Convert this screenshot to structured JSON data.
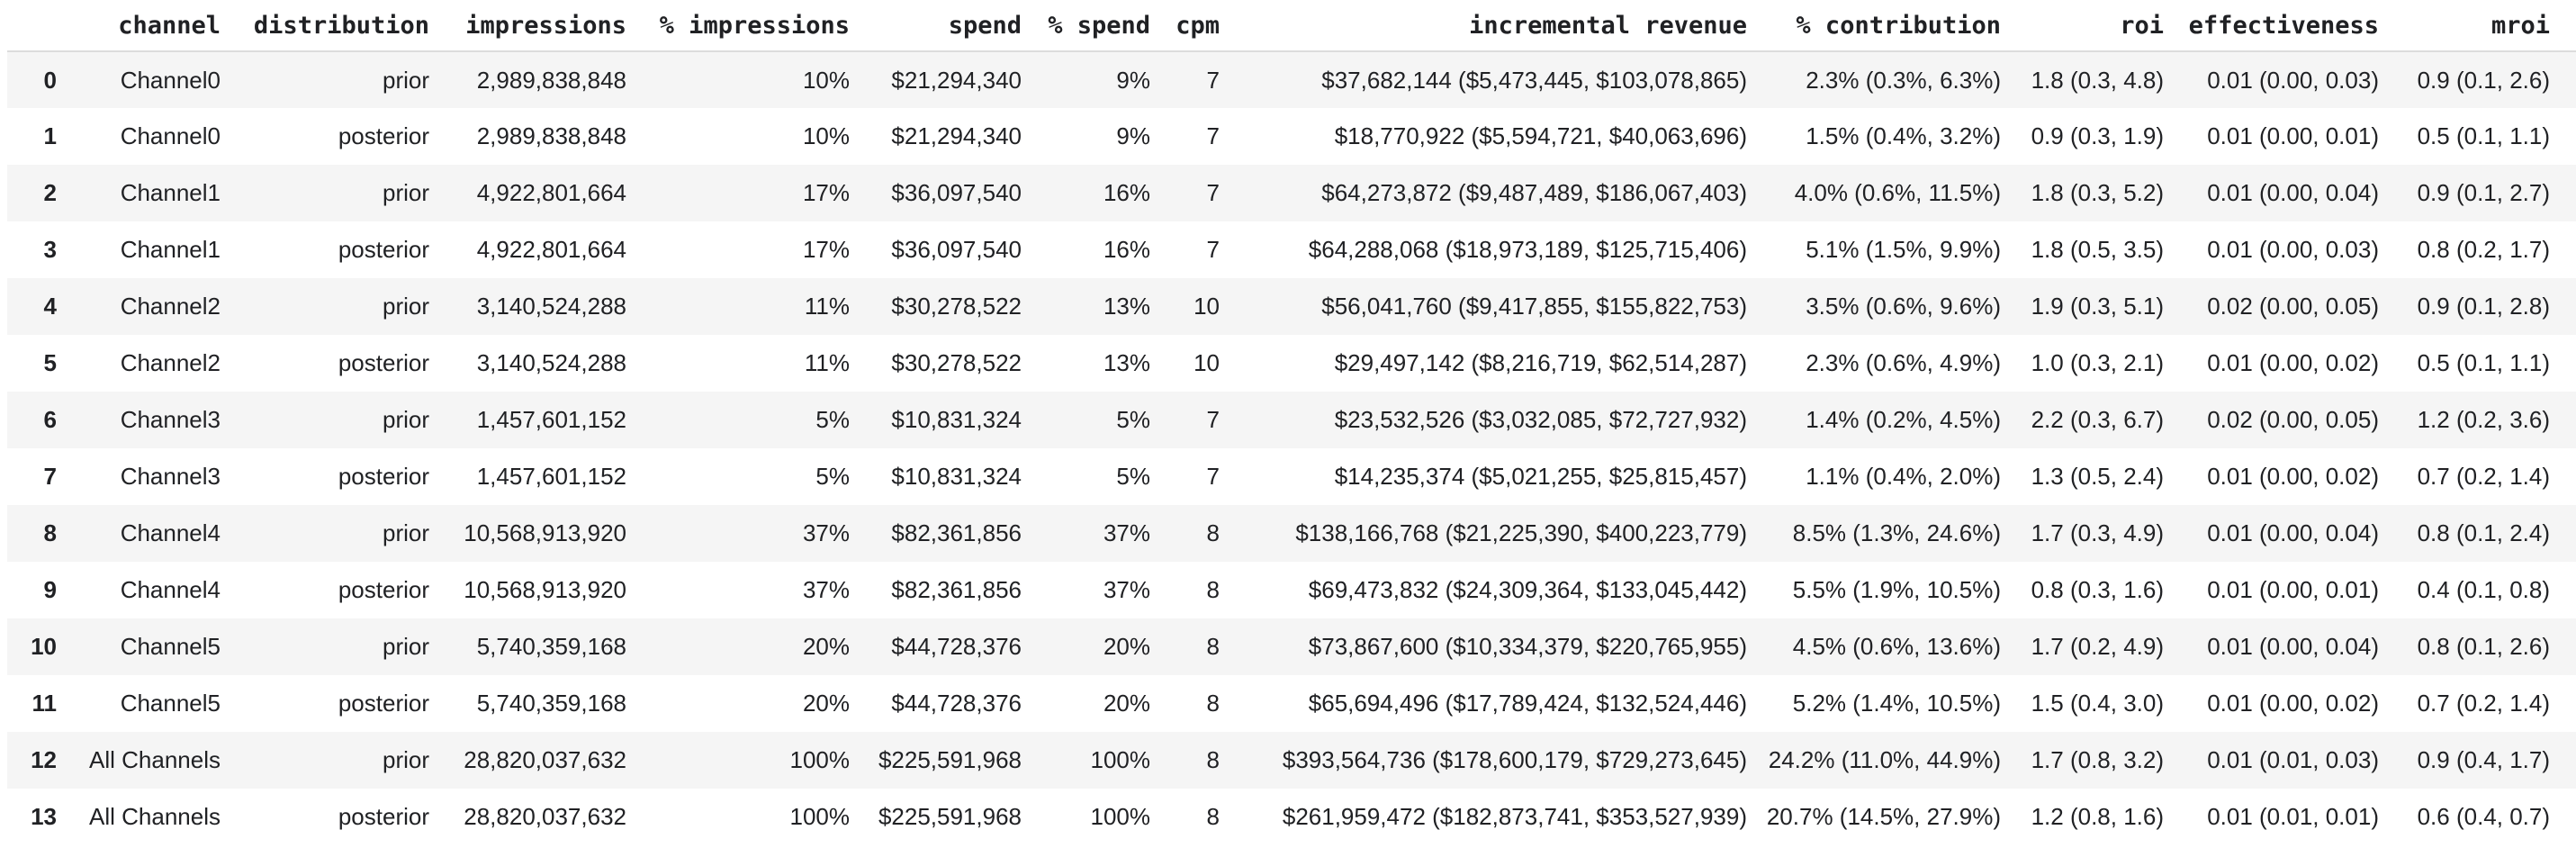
{
  "colors": {
    "row_stripe": "#f5f5f5",
    "header_border": "#dcdcdc",
    "text": "#202124",
    "background": "#ffffff"
  },
  "table": {
    "index_header": "",
    "columns": [
      "channel",
      "distribution",
      "impressions",
      "% impressions",
      "spend",
      "% spend",
      "cpm",
      "incremental revenue",
      "% contribution",
      "roi",
      "effectiveness",
      "mroi"
    ],
    "rows": [
      {
        "index": "0",
        "cells": [
          "Channel0",
          "prior",
          "2,989,838,848",
          "10%",
          "$21,294,340",
          "9%",
          "7",
          "$37,682,144 ($5,473,445, $103,078,865)",
          "2.3% (0.3%, 6.3%)",
          "1.8 (0.3, 4.8)",
          "0.01 (0.00, 0.03)",
          "0.9 (0.1, 2.6)"
        ]
      },
      {
        "index": "1",
        "cells": [
          "Channel0",
          "posterior",
          "2,989,838,848",
          "10%",
          "$21,294,340",
          "9%",
          "7",
          "$18,770,922 ($5,594,721, $40,063,696)",
          "1.5% (0.4%, 3.2%)",
          "0.9 (0.3, 1.9)",
          "0.01 (0.00, 0.01)",
          "0.5 (0.1, 1.1)"
        ]
      },
      {
        "index": "2",
        "cells": [
          "Channel1",
          "prior",
          "4,922,801,664",
          "17%",
          "$36,097,540",
          "16%",
          "7",
          "$64,273,872 ($9,487,489, $186,067,403)",
          "4.0% (0.6%, 11.5%)",
          "1.8 (0.3, 5.2)",
          "0.01 (0.00, 0.04)",
          "0.9 (0.1, 2.7)"
        ]
      },
      {
        "index": "3",
        "cells": [
          "Channel1",
          "posterior",
          "4,922,801,664",
          "17%",
          "$36,097,540",
          "16%",
          "7",
          "$64,288,068 ($18,973,189, $125,715,406)",
          "5.1% (1.5%, 9.9%)",
          "1.8 (0.5, 3.5)",
          "0.01 (0.00, 0.03)",
          "0.8 (0.2, 1.7)"
        ]
      },
      {
        "index": "4",
        "cells": [
          "Channel2",
          "prior",
          "3,140,524,288",
          "11%",
          "$30,278,522",
          "13%",
          "10",
          "$56,041,760 ($9,417,855, $155,822,753)",
          "3.5% (0.6%, 9.6%)",
          "1.9 (0.3, 5.1)",
          "0.02 (0.00, 0.05)",
          "0.9 (0.1, 2.8)"
        ]
      },
      {
        "index": "5",
        "cells": [
          "Channel2",
          "posterior",
          "3,140,524,288",
          "11%",
          "$30,278,522",
          "13%",
          "10",
          "$29,497,142 ($8,216,719, $62,514,287)",
          "2.3% (0.6%, 4.9%)",
          "1.0 (0.3, 2.1)",
          "0.01 (0.00, 0.02)",
          "0.5 (0.1, 1.1)"
        ]
      },
      {
        "index": "6",
        "cells": [
          "Channel3",
          "prior",
          "1,457,601,152",
          "5%",
          "$10,831,324",
          "5%",
          "7",
          "$23,532,526 ($3,032,085, $72,727,932)",
          "1.4% (0.2%, 4.5%)",
          "2.2 (0.3, 6.7)",
          "0.02 (0.00, 0.05)",
          "1.2 (0.2, 3.6)"
        ]
      },
      {
        "index": "7",
        "cells": [
          "Channel3",
          "posterior",
          "1,457,601,152",
          "5%",
          "$10,831,324",
          "5%",
          "7",
          "$14,235,374 ($5,021,255, $25,815,457)",
          "1.1% (0.4%, 2.0%)",
          "1.3 (0.5, 2.4)",
          "0.01 (0.00, 0.02)",
          "0.7 (0.2, 1.4)"
        ]
      },
      {
        "index": "8",
        "cells": [
          "Channel4",
          "prior",
          "10,568,913,920",
          "37%",
          "$82,361,856",
          "37%",
          "8",
          "$138,166,768 ($21,225,390, $400,223,779)",
          "8.5% (1.3%, 24.6%)",
          "1.7 (0.3, 4.9)",
          "0.01 (0.00, 0.04)",
          "0.8 (0.1, 2.4)"
        ]
      },
      {
        "index": "9",
        "cells": [
          "Channel4",
          "posterior",
          "10,568,913,920",
          "37%",
          "$82,361,856",
          "37%",
          "8",
          "$69,473,832 ($24,309,364, $133,045,442)",
          "5.5% (1.9%, 10.5%)",
          "0.8 (0.3, 1.6)",
          "0.01 (0.00, 0.01)",
          "0.4 (0.1, 0.8)"
        ]
      },
      {
        "index": "10",
        "cells": [
          "Channel5",
          "prior",
          "5,740,359,168",
          "20%",
          "$44,728,376",
          "20%",
          "8",
          "$73,867,600 ($10,334,379, $220,765,955)",
          "4.5% (0.6%, 13.6%)",
          "1.7 (0.2, 4.9)",
          "0.01 (0.00, 0.04)",
          "0.8 (0.1, 2.6)"
        ]
      },
      {
        "index": "11",
        "cells": [
          "Channel5",
          "posterior",
          "5,740,359,168",
          "20%",
          "$44,728,376",
          "20%",
          "8",
          "$65,694,496 ($17,789,424, $132,524,446)",
          "5.2% (1.4%, 10.5%)",
          "1.5 (0.4, 3.0)",
          "0.01 (0.00, 0.02)",
          "0.7 (0.2, 1.4)"
        ]
      },
      {
        "index": "12",
        "cells": [
          "All Channels",
          "prior",
          "28,820,037,632",
          "100%",
          "$225,591,968",
          "100%",
          "8",
          "$393,564,736 ($178,600,179, $729,273,645)",
          "24.2% (11.0%, 44.9%)",
          "1.7 (0.8, 3.2)",
          "0.01 (0.01, 0.03)",
          "0.9 (0.4, 1.7)"
        ]
      },
      {
        "index": "13",
        "cells": [
          "All Channels",
          "posterior",
          "28,820,037,632",
          "100%",
          "$225,591,968",
          "100%",
          "8",
          "$261,959,472 ($182,873,741, $353,527,939)",
          "20.7% (14.5%, 27.9%)",
          "1.2 (0.8, 1.6)",
          "0.01 (0.01, 0.01)",
          "0.6 (0.4, 0.7)"
        ]
      }
    ]
  }
}
